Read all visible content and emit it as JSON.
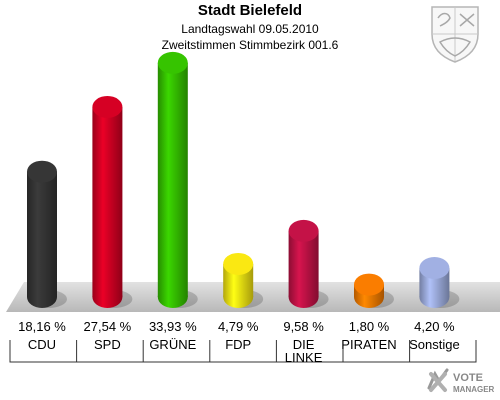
{
  "header": {
    "title": "Stadt Bielefeld",
    "subtitle1": "Landtagswahl 09.05.2010",
    "subtitle2": "Zweitstimmen Stimmbezirk 001.6"
  },
  "logo": {
    "text_line1": "VOTE",
    "text_line2": "MANAGER"
  },
  "chart_data": {
    "type": "bar",
    "title": "Stadt Bielefeld",
    "subtitle": "Landtagswahl 09.05.2010 / Zweitstimmen Stimmbezirk 001.6",
    "categories": [
      "CDU",
      "SPD",
      "GRÜNE",
      "FDP",
      "DIE LINKE",
      "PIRATEN",
      "Sonstige"
    ],
    "values": [
      18.16,
      27.54,
      33.93,
      4.79,
      9.58,
      1.8,
      4.2
    ],
    "value_labels": [
      "18,16 %",
      "27,54 %",
      "33,93 %",
      "4,79 %",
      "9,58 %",
      "1,80 %",
      "4,20 %"
    ],
    "colors": [
      "#333333",
      "#cc0022",
      "#33bb00",
      "#eedd11",
      "#bb1144",
      "#ee7700",
      "#99a8d8"
    ],
    "ylim": [
      0,
      35
    ],
    "grid": false,
    "legend": "none"
  }
}
